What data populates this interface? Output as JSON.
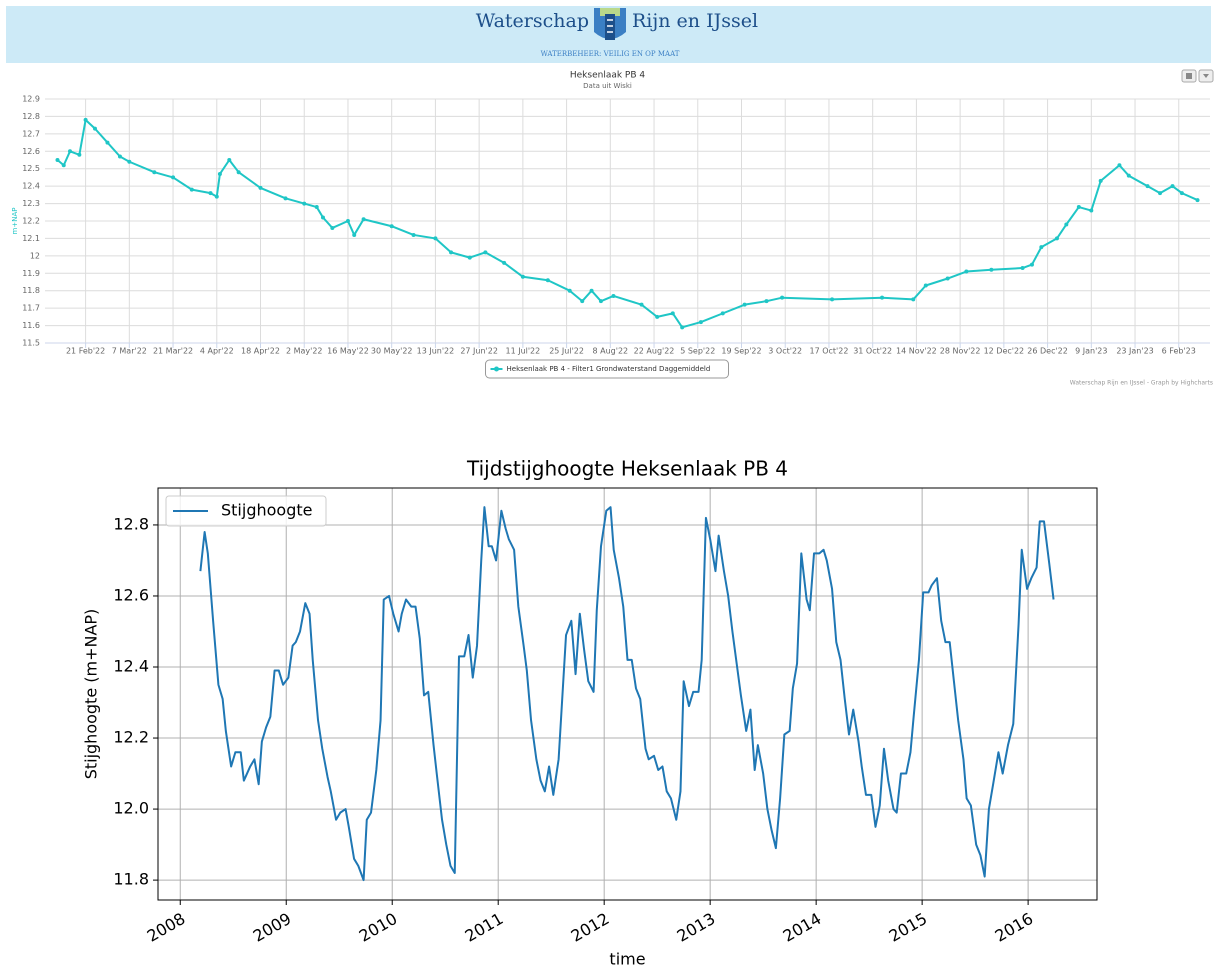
{
  "header": {
    "title_left": "Waterschap",
    "title_right": "Rijn en IJssel",
    "tagline": "WATERBEHEER: VEILIG EN OP MAAT"
  },
  "chart_data": [
    {
      "type": "line",
      "title": "Heksenlaak PB 4",
      "subtitle": "Data uit Wiski",
      "y_label": "m+NAP",
      "credits": "Waterschap Rijn en IJssel - Graph by Highcharts",
      "legend": "bottom",
      "grid": true,
      "markers": true,
      "xlim": [
        "2022-02-08",
        "2023-02-16"
      ],
      "ylim": [
        11.5,
        12.9
      ],
      "yticks": [
        11.5,
        11.6,
        11.7,
        11.8,
        11.9,
        12,
        12.1,
        12.2,
        12.3,
        12.4,
        12.5,
        12.6,
        12.7,
        12.8,
        12.9
      ],
      "xticks": [
        {
          "value": "2022-02-21",
          "label": "21 Feb'22"
        },
        {
          "value": "2022-03-07",
          "label": "7 Mar'22"
        },
        {
          "value": "2022-03-21",
          "label": "21 Mar'22"
        },
        {
          "value": "2022-04-04",
          "label": "4 Apr'22"
        },
        {
          "value": "2022-04-18",
          "label": "18 Apr'22"
        },
        {
          "value": "2022-05-02",
          "label": "2 May'22"
        },
        {
          "value": "2022-05-16",
          "label": "16 May'22"
        },
        {
          "value": "2022-05-30",
          "label": "30 May'22"
        },
        {
          "value": "2022-06-13",
          "label": "13 Jun'22"
        },
        {
          "value": "2022-06-27",
          "label": "27 Jun'22"
        },
        {
          "value": "2022-07-11",
          "label": "11 Jul'22"
        },
        {
          "value": "2022-07-25",
          "label": "25 Jul'22"
        },
        {
          "value": "2022-08-08",
          "label": "8 Aug'22"
        },
        {
          "value": "2022-08-22",
          "label": "22 Aug'22"
        },
        {
          "value": "2022-09-05",
          "label": "5 Sep'22"
        },
        {
          "value": "2022-09-19",
          "label": "19 Sep'22"
        },
        {
          "value": "2022-10-03",
          "label": "3 Oct'22"
        },
        {
          "value": "2022-10-17",
          "label": "17 Oct'22"
        },
        {
          "value": "2022-10-31",
          "label": "31 Oct'22"
        },
        {
          "value": "2022-11-14",
          "label": "14 Nov'22"
        },
        {
          "value": "2022-11-28",
          "label": "28 Nov'22"
        },
        {
          "value": "2022-12-12",
          "label": "12 Dec'22"
        },
        {
          "value": "2022-12-26",
          "label": "26 Dec'22"
        },
        {
          "value": "2023-01-09",
          "label": "9 Jan'23"
        },
        {
          "value": "2023-01-23",
          "label": "23 Jan'23"
        },
        {
          "value": "2023-02-06",
          "label": "6 Feb'23"
        }
      ],
      "x": [
        "2022-02-12",
        "2022-02-14",
        "2022-02-16",
        "2022-02-19",
        "2022-02-21",
        "2022-02-24",
        "2022-02-28",
        "2022-03-04",
        "2022-03-07",
        "2022-03-15",
        "2022-03-21",
        "2022-03-27",
        "2022-04-02",
        "2022-04-04",
        "2022-04-05",
        "2022-04-08",
        "2022-04-11",
        "2022-04-18",
        "2022-04-26",
        "2022-05-02",
        "2022-05-06",
        "2022-05-08",
        "2022-05-11",
        "2022-05-16",
        "2022-05-18",
        "2022-05-21",
        "2022-05-30",
        "2022-06-06",
        "2022-06-13",
        "2022-06-18",
        "2022-06-24",
        "2022-06-29",
        "2022-07-05",
        "2022-07-11",
        "2022-07-19",
        "2022-07-26",
        "2022-07-30",
        "2022-08-02",
        "2022-08-05",
        "2022-08-09",
        "2022-08-18",
        "2022-08-23",
        "2022-08-28",
        "2022-08-31",
        "2022-09-06",
        "2022-09-13",
        "2022-09-20",
        "2022-09-27",
        "2022-10-02",
        "2022-10-18",
        "2022-11-03",
        "2022-11-13",
        "2022-11-17",
        "2022-11-24",
        "2022-11-30",
        "2022-12-08",
        "2022-12-18",
        "2022-12-21",
        "2022-12-24",
        "2022-12-29",
        "2023-01-01",
        "2023-01-05",
        "2023-01-09",
        "2023-01-12",
        "2023-01-18",
        "2023-01-21",
        "2023-01-27",
        "2023-01-31",
        "2023-02-04",
        "2023-02-07",
        "2023-02-12"
      ],
      "series": [
        {
          "name": "Heksenlaak PB 4 - Filter1 Grondwaterstand Daggemiddeld",
          "color": "#1fc6c6",
          "values": [
            12.55,
            12.52,
            12.6,
            12.58,
            12.78,
            12.73,
            12.65,
            12.57,
            12.54,
            12.48,
            12.45,
            12.38,
            12.36,
            12.34,
            12.47,
            12.55,
            12.48,
            12.39,
            12.33,
            12.3,
            12.28,
            12.22,
            12.16,
            12.2,
            12.12,
            12.21,
            12.17,
            12.12,
            12.1,
            12.02,
            11.99,
            12.02,
            11.96,
            11.88,
            11.86,
            11.8,
            11.74,
            11.8,
            11.74,
            11.77,
            11.72,
            11.65,
            11.67,
            11.59,
            11.62,
            11.67,
            11.72,
            11.74,
            11.76,
            11.75,
            11.76,
            11.75,
            11.83,
            11.87,
            11.91,
            11.92,
            11.93,
            11.95,
            12.05,
            12.1,
            12.18,
            12.28,
            12.26,
            12.43,
            12.52,
            12.46,
            12.4,
            12.36,
            12.4,
            12.36,
            12.32
          ]
        }
      ]
    },
    {
      "type": "line",
      "title": "Tijdstijghoogte  Heksenlaak PB 4",
      "x_label": "time",
      "y_label": "Stijghoogte (m+NAP)",
      "legend": "upper left",
      "grid": true,
      "markers": false,
      "xlim": [
        2007.79,
        2016.65
      ],
      "ylim": [
        11.744,
        12.904
      ],
      "yticks": [
        11.8,
        {
          "value": 12,
          "label": "12.0"
        },
        12.2,
        12.4,
        12.6,
        12.8
      ],
      "xticks": [
        2008,
        2009,
        2010,
        2011,
        2012,
        2013,
        2014,
        2015,
        2016
      ],
      "x": [
        2008.19,
        2008.23,
        2008.26,
        2008.31,
        2008.36,
        2008.4,
        2008.43,
        2008.48,
        2008.52,
        2008.57,
        2008.6,
        2008.66,
        2008.7,
        2008.74,
        2008.77,
        2008.81,
        2008.85,
        2008.89,
        2008.93,
        2008.97,
        2009.02,
        2009.06,
        2009.09,
        2009.13,
        2009.18,
        2009.22,
        2009.25,
        2009.3,
        2009.34,
        2009.39,
        2009.42,
        2009.47,
        2009.51,
        2009.56,
        2009.59,
        2009.64,
        2009.68,
        2009.73,
        2009.76,
        2009.8,
        2009.85,
        2009.89,
        2009.92,
        2009.97,
        2010.01,
        2010.06,
        2010.09,
        2010.13,
        2010.18,
        2010.22,
        2010.26,
        2010.3,
        2010.34,
        2010.39,
        2010.42,
        2010.47,
        2010.51,
        2010.55,
        2010.59,
        2010.63,
        2010.68,
        2010.72,
        2010.76,
        2010.8,
        2010.84,
        2010.87,
        2010.91,
        2010.94,
        2010.98,
        2011.03,
        2011.07,
        2011.1,
        2011.15,
        2011.19,
        2011.24,
        2011.27,
        2011.31,
        2011.36,
        2011.4,
        2011.44,
        2011.48,
        2011.52,
        2011.57,
        2011.6,
        2011.64,
        2011.69,
        2011.73,
        2011.77,
        2011.81,
        2011.85,
        2011.9,
        2011.93,
        2011.97,
        2012.02,
        2012.06,
        2012.09,
        2012.14,
        2012.18,
        2012.22,
        2012.26,
        2012.3,
        2012.34,
        2012.39,
        2012.42,
        2012.47,
        2012.51,
        2012.55,
        2012.59,
        2012.63,
        2012.68,
        2012.72,
        2012.75,
        2012.8,
        2012.84,
        2012.89,
        2012.92,
        2012.96,
        2013.0,
        2013.05,
        2013.08,
        2013.13,
        2013.17,
        2013.21,
        2013.25,
        2013.29,
        2013.34,
        2013.38,
        2013.42,
        2013.45,
        2013.5,
        2013.54,
        2013.58,
        2013.62,
        2013.66,
        2013.7,
        2013.75,
        2013.78,
        2013.82,
        2013.86,
        2013.91,
        2013.94,
        2013.98,
        2014.03,
        2014.07,
        2014.1,
        2014.15,
        2014.19,
        2014.23,
        2014.27,
        2014.31,
        2014.35,
        2014.4,
        2014.43,
        2014.47,
        2014.52,
        2014.56,
        2014.6,
        2014.64,
        2014.68,
        2014.73,
        2014.76,
        2014.8,
        2014.85,
        2014.89,
        2014.92,
        2014.97,
        2015.01,
        2015.06,
        2015.09,
        2015.14,
        2015.18,
        2015.22,
        2015.26,
        2015.3,
        2015.34,
        2015.39,
        2015.42,
        2015.46,
        2015.51,
        2015.55,
        2015.59,
        2015.63,
        2015.67,
        2015.72,
        2015.76,
        2015.81,
        2015.86,
        2015.91,
        2015.94,
        2015.99,
        2016.03,
        2016.08,
        2016.11,
        2016.15,
        2016.2,
        2016.24
      ],
      "series": [
        {
          "name": "Stijghoogte",
          "color": "#1f77b4",
          "values": [
            12.67,
            12.78,
            12.72,
            12.53,
            12.35,
            12.31,
            12.22,
            12.12,
            12.16,
            12.16,
            12.08,
            12.12,
            12.14,
            12.07,
            12.19,
            12.23,
            12.26,
            12.39,
            12.39,
            12.35,
            12.37,
            12.46,
            12.47,
            12.5,
            12.58,
            12.55,
            12.42,
            12.25,
            12.17,
            12.09,
            12.05,
            11.97,
            11.99,
            12.0,
            11.95,
            11.86,
            11.84,
            11.8,
            11.97,
            11.99,
            12.11,
            12.25,
            12.59,
            12.6,
            12.55,
            12.5,
            12.55,
            12.59,
            12.57,
            12.57,
            12.48,
            12.32,
            12.33,
            12.18,
            12.1,
            11.97,
            11.9,
            11.84,
            11.82,
            12.43,
            12.43,
            12.49,
            12.37,
            12.46,
            12.7,
            12.85,
            12.74,
            12.74,
            12.7,
            12.84,
            12.79,
            12.76,
            12.73,
            12.57,
            12.46,
            12.39,
            12.25,
            12.14,
            12.08,
            12.05,
            12.12,
            12.04,
            12.14,
            12.29,
            12.49,
            12.53,
            12.38,
            12.55,
            12.45,
            12.36,
            12.33,
            12.56,
            12.74,
            12.84,
            12.85,
            12.73,
            12.65,
            12.57,
            12.42,
            12.42,
            12.34,
            12.31,
            12.17,
            12.14,
            12.15,
            12.11,
            12.12,
            12.05,
            12.03,
            11.97,
            12.05,
            12.36,
            12.29,
            12.33,
            12.33,
            12.42,
            12.82,
            12.76,
            12.67,
            12.77,
            12.67,
            12.6,
            12.5,
            12.41,
            12.32,
            12.22,
            12.28,
            12.11,
            12.18,
            12.1,
            12.0,
            11.94,
            11.89,
            12.03,
            12.21,
            12.22,
            12.34,
            12.41,
            12.72,
            12.59,
            12.56,
            12.72,
            12.72,
            12.73,
            12.7,
            12.62,
            12.47,
            12.42,
            12.31,
            12.21,
            12.28,
            12.19,
            12.12,
            12.04,
            12.04,
            11.95,
            12.01,
            12.17,
            12.08,
            12.0,
            11.99,
            12.1,
            12.1,
            12.16,
            12.26,
            12.42,
            12.61,
            12.61,
            12.63,
            12.65,
            12.53,
            12.47,
            12.47,
            12.36,
            12.25,
            12.14,
            12.03,
            12.01,
            11.9,
            11.87,
            11.81,
            12.0,
            12.07,
            12.16,
            12.1,
            12.18,
            12.24,
            12.52,
            12.73,
            12.62,
            12.65,
            12.68,
            12.81,
            12.81,
            12.69,
            12.59
          ]
        }
      ]
    }
  ]
}
